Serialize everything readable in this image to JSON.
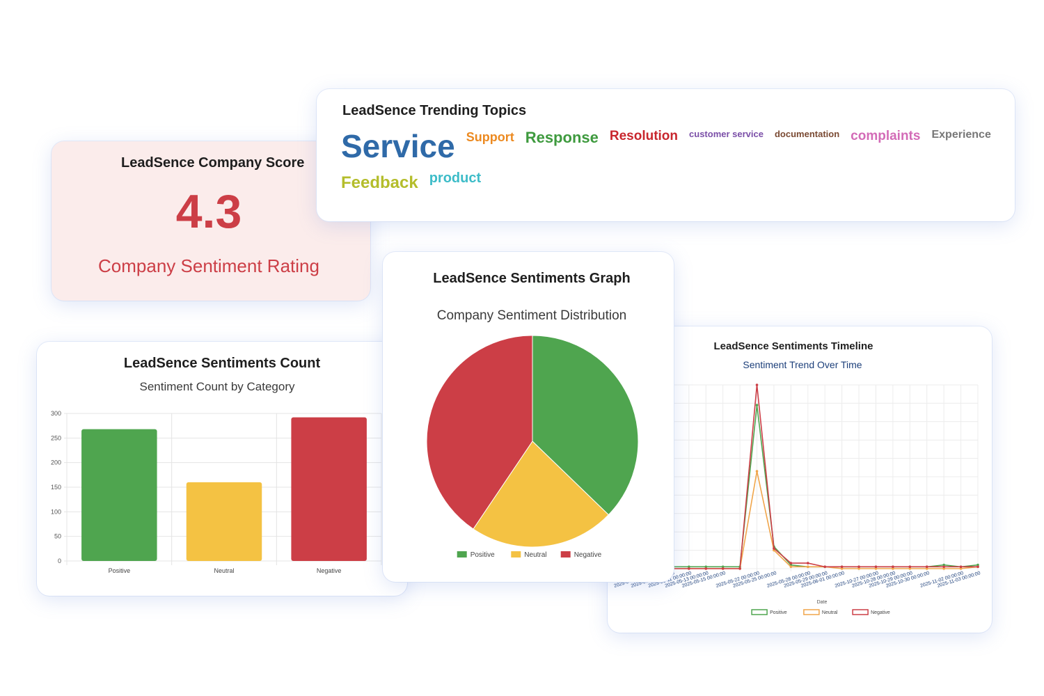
{
  "topics_card": {
    "title": "LeadSence Trending Topics",
    "topics": [
      {
        "text": "Service",
        "size": 46,
        "color": "#2f6aa8"
      },
      {
        "text": "Support",
        "size": 18,
        "color": "#ec8a21"
      },
      {
        "text": "Response",
        "size": 22,
        "color": "#3e9a3e"
      },
      {
        "text": "Resolution",
        "size": 19,
        "color": "#c8262d"
      },
      {
        "text": "customer service",
        "size": 13,
        "color": "#7b4fa8"
      },
      {
        "text": "documentation",
        "size": 13,
        "color": "#7a4a33"
      },
      {
        "text": "complaints",
        "size": 19,
        "color": "#d36bb7"
      },
      {
        "text": "Experience",
        "size": 16,
        "color": "#777777"
      },
      {
        "text": "Feedback",
        "size": 24,
        "color": "#b4bd2b"
      },
      {
        "text": "product",
        "size": 20,
        "color": "#3dbcc8"
      }
    ]
  },
  "score_card": {
    "title": "LeadSence Company Score",
    "value": "4.3",
    "caption": "Company Sentiment Rating"
  },
  "bar_card": {
    "title": "LeadSence Sentiments Count",
    "subtitle": "Sentiment Count by Category"
  },
  "pie_card": {
    "title": "LeadSence Sentiments Graph",
    "subtitle": "Company Sentiment Distribution"
  },
  "line_card": {
    "title": "LeadSence Sentiments Timeline",
    "subtitle": "Sentiment Trend Over Time"
  },
  "chart_data": [
    {
      "type": "bar",
      "title": "LeadSence Sentiments Count",
      "subtitle": "Sentiment Count by Category",
      "categories": [
        "Positive",
        "Neutral",
        "Negative"
      ],
      "values": [
        268,
        160,
        292
      ],
      "colors": [
        "#4fa54f",
        "#f4c243",
        "#cc3e46"
      ],
      "ylim": [
        0,
        300
      ],
      "yticks": [
        0,
        50,
        100,
        150,
        200,
        250,
        300
      ],
      "grid": true
    },
    {
      "type": "pie",
      "title": "Company Sentiment Distribution",
      "labels": [
        "Positive",
        "Neutral",
        "Negative"
      ],
      "values": [
        268,
        160,
        292
      ],
      "colors": [
        "#4fa54f",
        "#f4c243",
        "#cc3e46"
      ],
      "legend": "bottom"
    },
    {
      "type": "line",
      "title": "Sentiment Trend Over Time",
      "xlabel": "Date",
      "x": [
        "2025-04-13 00:00:00",
        "2025-05-10 00:00:00",
        "2025-05-11 00:00:00",
        "2025-05-13 00:00:00",
        "2025-05-15 00:00:00",
        "2025-05-21 00:00:00",
        "2025-05-22 00:00:00",
        "2025-05-25 00:00:00",
        "2025-05-26 00:00:00",
        "2025-05-28 00:00:00",
        "2025-05-29 00:00:00",
        "2025-06-01 00:00:00",
        "2025-06-02 00:00:00",
        "2025-10-27 00:00:00",
        "2025-10-28 00:00:00",
        "2025-10-29 00:00:00",
        "2025-10-30 00:00:00",
        "2025-11-01 00:00:00",
        "2025-11-02 00:00:00",
        "2025-11-03 00:00:00"
      ],
      "x_tick_labels": [
        "2025-04-13 00:00:00",
        "2025-05-10 00:00:00",
        "2025-05-11 00:00:00",
        "2025-05-13 00:00:00",
        "2025-05-15 00:00:00",
        "2025-05-22 00:00:00",
        "2025-05-25 00:00:00",
        "2025-05-28 00:00:00",
        "2025-05-29 00:00:00",
        "2025-06-01 00:00:00",
        "2025-10-27 00:00:00",
        "2025-10-28 00:00:00",
        "2025-10-29 00:00:00",
        "2025-10-30 00:00:00",
        "2025-11-02 00:00:00",
        "2025-11-03 00:00:00"
      ],
      "x_tick_index": [
        0,
        1,
        2,
        3,
        4,
        6,
        7,
        9,
        10,
        11,
        13,
        14,
        15,
        16,
        18,
        19
      ],
      "ylim": [
        0,
        100
      ],
      "series": [
        {
          "name": "Positive",
          "color": "#4fa54f",
          "values": [
            1,
            1,
            1,
            1,
            1,
            1,
            89,
            12,
            2,
            1,
            1,
            1,
            1,
            1,
            1,
            1,
            1,
            2,
            1,
            2
          ]
        },
        {
          "name": "Neutral",
          "color": "#f0a54a",
          "values": [
            0,
            0,
            0,
            0,
            0,
            0,
            53,
            10,
            1,
            1,
            1,
            0,
            0,
            0,
            0,
            0,
            0,
            0,
            0,
            1
          ]
        },
        {
          "name": "Negative",
          "color": "#cc3e46",
          "values": [
            0,
            0,
            0,
            0,
            0,
            0,
            100,
            11,
            3,
            3,
            1,
            1,
            1,
            1,
            1,
            1,
            1,
            1,
            1,
            1
          ]
        }
      ],
      "legend": "bottom"
    }
  ]
}
